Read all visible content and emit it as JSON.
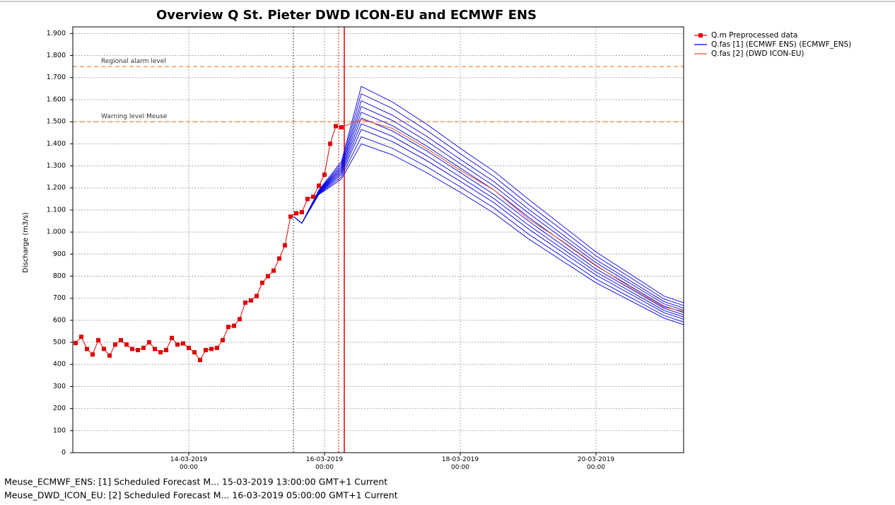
{
  "chart_data": {
    "type": "line",
    "title": "Overview Q St. Pieter DWD ICON-EU and ECMWF ENS",
    "y_label": "Discharge (m3/s)",
    "ylim": [
      0,
      1930
    ],
    "yticks": [
      0,
      100,
      200,
      300,
      400,
      500,
      600,
      700,
      800,
      900,
      {
        "value": 1000,
        "label": "1.000"
      },
      {
        "value": 1100,
        "label": "1.100"
      },
      {
        "value": 1200,
        "label": "1.200"
      },
      {
        "value": 1300,
        "label": "1.300"
      },
      {
        "value": 1400,
        "label": "1.400"
      },
      {
        "value": 1500,
        "label": "1.500"
      },
      {
        "value": 1600,
        "label": "1.600"
      },
      {
        "value": 1700,
        "label": "1.700"
      },
      {
        "value": 1800,
        "label": "1.800"
      },
      {
        "value": 1900,
        "label": "1.900"
      }
    ],
    "xlim": [
      "12-03-2019 07:00",
      "21-03-2019 07:00"
    ],
    "xticks": [
      "14-03-2019 00:00",
      "16-03-2019 00:00",
      "18-03-2019 00:00",
      "20-03-2019 00:00"
    ],
    "grid": true,
    "legend": "right",
    "hlines": [
      {
        "value": 1750,
        "label": "Regional alarm level",
        "color": "#f0a060"
      },
      {
        "value": 1500,
        "label": "Warning level Meuse",
        "color": "#f0a060"
      }
    ],
    "vlines": [
      {
        "x": "15-03-2019 13:00",
        "color": "#333333",
        "style": "dotted"
      },
      {
        "x": "16-03-2019 05:00",
        "color": "#e00000",
        "style": "dotted"
      },
      {
        "x": "16-03-2019 07:00",
        "color": "#e00000",
        "style": "solid"
      }
    ],
    "series": [
      {
        "name": "Q.m Preprocessed data",
        "color": "#e00000",
        "marker": "square",
        "x": [
          "12-03-2019 08:00",
          "12-03-2019 10:00",
          "12-03-2019 12:00",
          "12-03-2019 14:00",
          "12-03-2019 16:00",
          "12-03-2019 18:00",
          "12-03-2019 20:00",
          "12-03-2019 22:00",
          "13-03-2019 00:00",
          "13-03-2019 02:00",
          "13-03-2019 04:00",
          "13-03-2019 06:00",
          "13-03-2019 08:00",
          "13-03-2019 10:00",
          "13-03-2019 12:00",
          "13-03-2019 14:00",
          "13-03-2019 16:00",
          "13-03-2019 18:00",
          "13-03-2019 20:00",
          "13-03-2019 22:00",
          "14-03-2019 00:00",
          "14-03-2019 02:00",
          "14-03-2019 04:00",
          "14-03-2019 06:00",
          "14-03-2019 08:00",
          "14-03-2019 10:00",
          "14-03-2019 12:00",
          "14-03-2019 14:00",
          "14-03-2019 16:00",
          "14-03-2019 18:00",
          "14-03-2019 20:00",
          "14-03-2019 22:00",
          "15-03-2019 00:00",
          "15-03-2019 02:00",
          "15-03-2019 04:00",
          "15-03-2019 06:00",
          "15-03-2019 08:00",
          "15-03-2019 10:00",
          "15-03-2019 12:00",
          "15-03-2019 14:00",
          "15-03-2019 16:00",
          "15-03-2019 18:00",
          "15-03-2019 20:00",
          "15-03-2019 22:00",
          "16-03-2019 00:00",
          "16-03-2019 02:00",
          "16-03-2019 04:00",
          "16-03-2019 06:00"
        ],
        "values": [
          497,
          525,
          470,
          445,
          510,
          470,
          440,
          490,
          510,
          490,
          470,
          465,
          475,
          500,
          470,
          455,
          465,
          520,
          490,
          495,
          475,
          455,
          420,
          465,
          470,
          475,
          510,
          570,
          575,
          605,
          680,
          690,
          710,
          770,
          800,
          825,
          880,
          940,
          1070,
          1085,
          1090,
          1150,
          1160,
          1210,
          1260,
          1400,
          1480,
          1475
        ]
      },
      {
        "name": "Q.fas [1] (ECMWF ENS)  (ECMWF_ENS)",
        "color": "#0000e0",
        "x": [
          "15-03-2019 13:00",
          "15-03-2019 16:00",
          "15-03-2019 22:00",
          "16-03-2019 06:00",
          "16-03-2019 13:00",
          "17-03-2019 00:00",
          "17-03-2019 12:00",
          "18-03-2019 00:00",
          "18-03-2019 12:00",
          "19-03-2019 00:00",
          "19-03-2019 12:00",
          "20-03-2019 00:00",
          "20-03-2019 12:00",
          "21-03-2019 00:00",
          "21-03-2019 07:00"
        ],
        "members": [
          [
            1070,
            1040,
            1170,
            1240,
            1400,
            1350,
            1270,
            1180,
            1085,
            970,
            870,
            770,
            690,
            610,
            580
          ],
          [
            1070,
            1040,
            1172,
            1250,
            1432,
            1380,
            1297,
            1205,
            1109,
            992,
            890,
            787,
            705,
            622,
            592
          ],
          [
            1070,
            1040,
            1175,
            1260,
            1465,
            1410,
            1325,
            1230,
            1132,
            1015,
            910,
            805,
            720,
            635,
            605
          ],
          [
            1070,
            1040,
            1177,
            1268,
            1491,
            1434,
            1347,
            1250,
            1151,
            1033,
            926,
            819,
            732,
            645,
            615
          ],
          [
            1070,
            1040,
            1179,
            1276,
            1517,
            1458,
            1369,
            1270,
            1170,
            1051,
            942,
            833,
            744,
            655,
            625
          ],
          [
            1070,
            1040,
            1181,
            1284,
            1543,
            1482,
            1391,
            1290,
            1190,
            1069,
            958,
            847,
            756,
            665,
            635
          ],
          [
            1070,
            1040,
            1183,
            1292,
            1569,
            1506,
            1413,
            1310,
            1208,
            1087,
            974,
            861,
            768,
            675,
            645
          ],
          [
            1070,
            1040,
            1185,
            1300,
            1595,
            1530,
            1435,
            1330,
            1228,
            1105,
            990,
            875,
            780,
            685,
            655
          ],
          [
            1070,
            1040,
            1187,
            1310,
            1627,
            1560,
            1462,
            1355,
            1251,
            1127,
            1010,
            892,
            795,
            697,
            667
          ],
          [
            1070,
            1040,
            1190,
            1320,
            1660,
            1590,
            1490,
            1380,
            1275,
            1150,
            1030,
            910,
            810,
            710,
            680
          ]
        ]
      },
      {
        "name": "Q.fas [2] (DWD ICON-EU)",
        "color": "#e05030",
        "x": [
          "16-03-2019 05:00",
          "16-03-2019 13:00",
          "17-03-2019 00:00",
          "17-03-2019 12:00",
          "18-03-2019 00:00",
          "18-03-2019 12:00",
          "19-03-2019 00:00",
          "19-03-2019 12:00",
          "20-03-2019 00:00",
          "20-03-2019 12:00",
          "21-03-2019 00:00",
          "21-03-2019 07:00"
        ],
        "values": [
          1470,
          1510,
          1470,
          1380,
          1280,
          1190,
          1060,
          960,
          850,
          750,
          660,
          640
        ]
      }
    ],
    "footer_lines": [
      "Meuse_ECMWF_ENS: [1] Scheduled Forecast M... 15-03-2019 13:00:00 GMT+1 Current",
      "Meuse_DWD_ICON_EU: [2] Scheduled Forecast M... 16-03-2019 05:00:00 GMT+1 Current"
    ]
  }
}
